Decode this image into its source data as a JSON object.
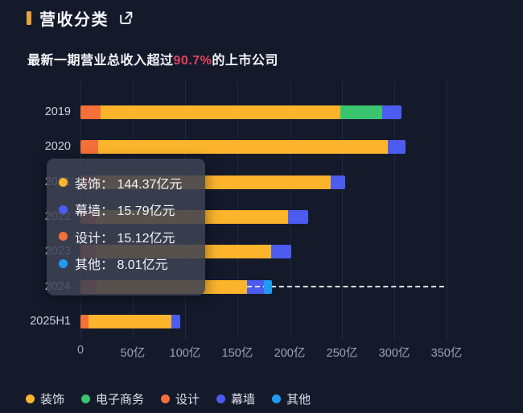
{
  "header": {
    "title": "营收分类",
    "subtitle_prefix": "最新一期营业总收入超过",
    "subtitle_highlight": "90.7%",
    "subtitle_suffix": "的上市公司"
  },
  "colors": {
    "background": "#151a2b",
    "title_marker": "#e6a23c",
    "subtitle_highlight": "#e0445c",
    "gridline": "#212944",
    "axis_label": "#9aa3b8",
    "pointer_dash": "#dcdfe8",
    "tooltip_background": "rgba(62,67,84,0.87)"
  },
  "chart_data": {
    "type": "bar",
    "orientation": "horizontal",
    "stacked": true,
    "unit": "亿元",
    "categories": [
      "2019",
      "2020",
      "2021",
      "2022",
      "2023",
      "2024",
      "2025H1"
    ],
    "series": [
      {
        "name": "设计",
        "color": "#f3703a",
        "values": [
          19.2,
          16.9,
          15.4,
          14.6,
          14.6,
          15.12,
          7.7
        ]
      },
      {
        "name": "装饰",
        "color": "#fbb42c",
        "values": [
          229.2,
          276.9,
          223.8,
          183.8,
          167.7,
          144.37,
          79.2
        ]
      },
      {
        "name": "电子商务",
        "color": "#3bc470",
        "values": [
          40.0,
          0,
          0,
          0,
          0,
          0,
          0
        ]
      },
      {
        "name": "幕墙",
        "color": "#4c5cf0",
        "values": [
          18.5,
          16.9,
          13.8,
          19.2,
          19.2,
          15.79,
          8.5
        ]
      },
      {
        "name": "其他",
        "color": "#1e9af0",
        "values": [
          0,
          0,
          0,
          0,
          0,
          8.01,
          0
        ]
      }
    ],
    "legend": [
      "装饰",
      "电子商务",
      "设计",
      "幕墙",
      "其他"
    ],
    "x_ticks": [
      "0",
      "50亿",
      "100亿",
      "150亿",
      "200亿",
      "250亿",
      "300亿",
      "350亿"
    ],
    "x_tick_values": [
      0,
      50,
      100,
      150,
      200,
      250,
      300,
      350
    ],
    "xlim": [
      0,
      350
    ],
    "grid": true,
    "legend_position": "bottom"
  },
  "pointer": {
    "row_index": 5,
    "start_value": 159.49,
    "end_value": 348
  },
  "tooltip": {
    "rows": [
      {
        "label": "装饰",
        "separator": "：",
        "value": "144.37亿元",
        "color": "#fbb42c"
      },
      {
        "label": "幕墙",
        "separator": "：",
        "value": "15.79亿元",
        "color": "#4c5cf0"
      },
      {
        "label": "设计",
        "separator": "：",
        "value": "15.12亿元",
        "color": "#f3703a"
      },
      {
        "label": "其他",
        "separator": "：",
        "value": "8.01亿元",
        "color": "#1e9af0"
      }
    ]
  }
}
